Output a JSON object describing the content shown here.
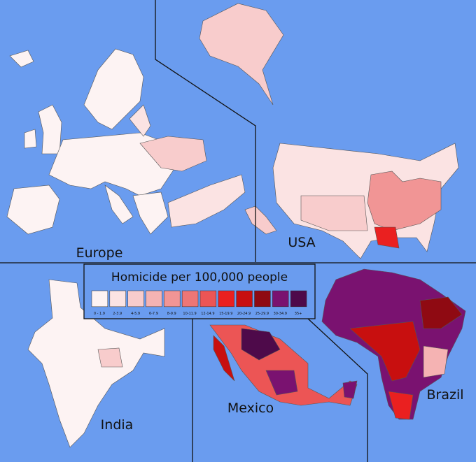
{
  "legend": {
    "title": "Homicide per 100,000 people",
    "bins": [
      {
        "label": "0 - 1.9",
        "color": "#fdf3f3"
      },
      {
        "label": "2-3.9",
        "color": "#fbe3e3"
      },
      {
        "label": "4-5.9",
        "color": "#f8cccc"
      },
      {
        "label": "6-7.9",
        "color": "#f5b3b3"
      },
      {
        "label": "8-9.9",
        "color": "#f19595"
      },
      {
        "label": "10-11.9",
        "color": "#ee7676"
      },
      {
        "label": "12-14.9",
        "color": "#ec5555"
      },
      {
        "label": "15-19.9",
        "color": "#ea2020"
      },
      {
        "label": "20-24.9",
        "color": "#c80f0f"
      },
      {
        "label": "25-29.9",
        "color": "#8f0a12"
      },
      {
        "label": "30-34.9",
        "color": "#7a1270"
      },
      {
        "label": "35+",
        "color": "#4e0a4a"
      }
    ]
  },
  "regions": [
    "Europe",
    "USA",
    "India",
    "Mexico",
    "Brazil"
  ]
}
